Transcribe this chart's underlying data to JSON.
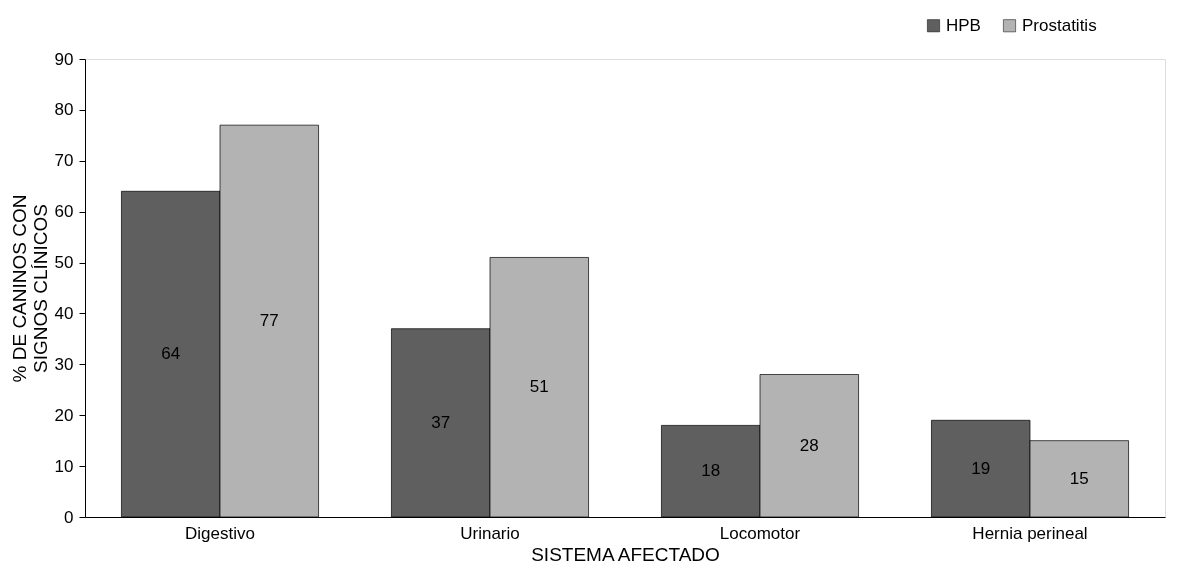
{
  "chart_data": {
    "type": "bar",
    "xlabel": "SISTEMA AFECTADO",
    "ylabel": "% DE CANINOS CON SIGNOS CLÍNICOS",
    "categories": [
      "Digestivo",
      "Urinario",
      "Locomotor",
      "Hernia perineal"
    ],
    "series": [
      {
        "name": "HPB",
        "color": "#5f5f5f",
        "values": [
          64,
          37,
          18,
          19
        ]
      },
      {
        "name": "Prostatitis",
        "color": "#b3b3b3",
        "values": [
          77,
          51,
          28,
          15
        ]
      }
    ],
    "ylim": [
      0,
      90
    ],
    "yticks": [
      0,
      10,
      20,
      30,
      40,
      50,
      60,
      70,
      80,
      90
    ],
    "grid": false,
    "legend": "top right",
    "data_labels": true
  }
}
